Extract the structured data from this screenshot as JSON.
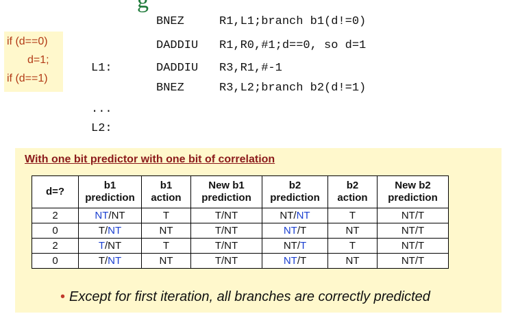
{
  "title_fragment": "g",
  "c_code": [
    "if (d==0)",
    "d=1;",
    "if (d==1)"
  ],
  "asm": [
    {
      "label": "",
      "op": "BNEZ",
      "args": "R1,L1;branch b1(d!=0)"
    },
    {
      "label": "",
      "op": "DADDIU",
      "args": "R1,R0,#1;d==0, so d=1"
    },
    {
      "label": "L1:",
      "op": "DADDIU",
      "args": "R3,R1,#-1"
    },
    {
      "label": "",
      "op": "BNEZ",
      "args": "R3,L2;branch b2(d!=1)"
    },
    {
      "label": "...",
      "op": "",
      "args": ""
    },
    {
      "label": "L2:",
      "op": "",
      "args": ""
    }
  ],
  "panel": {
    "title": "With one bit predictor with one bit of correlation",
    "headers": [
      [
        "d=?"
      ],
      [
        "b1",
        "prediction"
      ],
      [
        "b1",
        "action"
      ],
      [
        "New b1",
        "prediction"
      ],
      [
        "b2",
        "prediction"
      ],
      [
        "b2",
        "action"
      ],
      [
        "New b2",
        "prediction"
      ]
    ],
    "rows": [
      {
        "d": "2",
        "b1p_a": "NT",
        "b1p_b": "/NT",
        "b1a": "T",
        "nb1": "T/NT",
        "b2p_a": "NT/",
        "b2p_b": "NT",
        "b2a": "T",
        "nb2": "NT/T"
      },
      {
        "d": "0",
        "b1p_a": "T/",
        "b1p_b": "NT",
        "b1a": "NT",
        "nb1": "T/NT",
        "b2p_a": "NT",
        "b2p_b": "/T",
        "b2a": "NT",
        "nb2": "NT/T"
      },
      {
        "d": "2",
        "b1p_a": "T",
        "b1p_b": "/NT",
        "b1a": "T",
        "nb1": "T/NT",
        "b2p_a": "NT/",
        "b2p_b": "T",
        "b2a": "T",
        "nb2": "NT/T"
      },
      {
        "d": "0",
        "b1p_a": "T/",
        "b1p_b": "NT",
        "b1a": "NT",
        "nb1": "T/NT",
        "b2p_a": "NT",
        "b2p_b": "/T",
        "b2a": "NT",
        "nb2": "NT/T"
      }
    ],
    "note": "Except for first iteration, all branches are correctly predicted"
  },
  "colors": {
    "highlight": "#1a3fd0",
    "panel_bg": "#fff8cc",
    "title": "#8b1a1a",
    "c_code": "#b23a16"
  }
}
